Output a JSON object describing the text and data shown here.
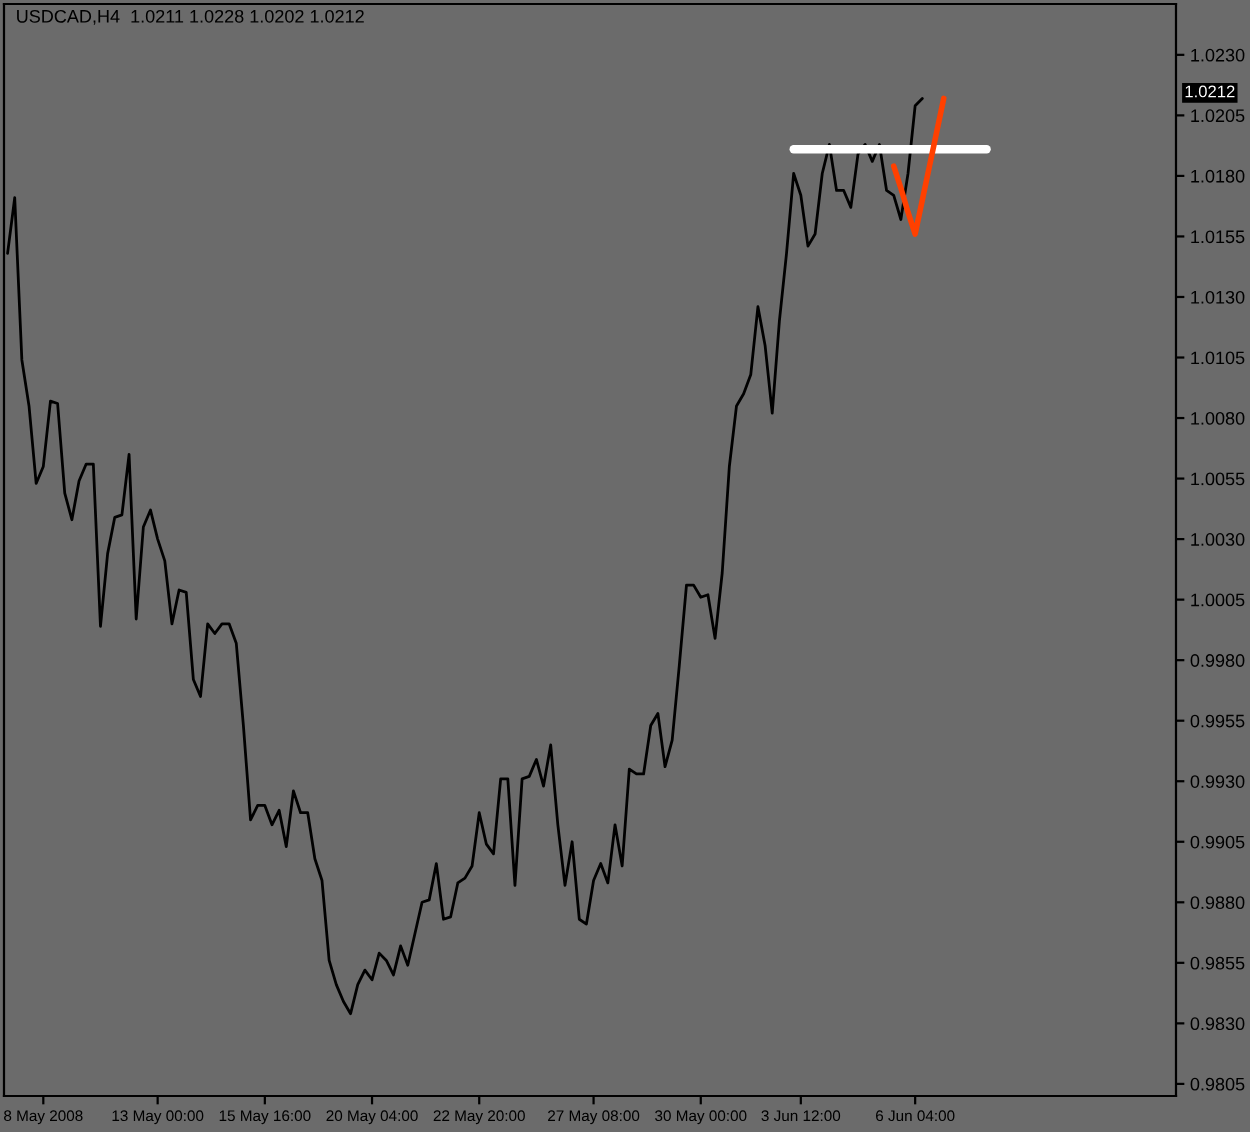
{
  "chart_data": {
    "type": "line",
    "title": "USDCAD,H4  1.0211 1.0228 1.0202 1.0212",
    "annotations": [
      "1.0212"
    ],
    "ylim": [
      0.98,
      1.0251
    ],
    "categories": [
      null,
      null,
      null,
      null,
      null,
      "8 May 2008",
      null,
      null,
      null,
      null,
      null,
      null,
      null,
      null,
      null,
      null,
      null,
      null,
      null,
      null,
      null,
      "13 May 00:00",
      null,
      null,
      null,
      null,
      null,
      null,
      null,
      null,
      null,
      null,
      null,
      null,
      null,
      null,
      "15 May 16:00",
      null,
      null,
      null,
      null,
      null,
      null,
      null,
      null,
      null,
      null,
      null,
      null,
      null,
      null,
      "20 May 04:00",
      null,
      null,
      null,
      null,
      null,
      null,
      null,
      null,
      null,
      null,
      null,
      null,
      null,
      null,
      "22 May 20:00",
      null,
      null,
      null,
      null,
      null,
      null,
      null,
      null,
      null,
      null,
      null,
      null,
      null,
      null,
      null,
      "27 May 08:00",
      null,
      null,
      null,
      null,
      null,
      null,
      null,
      null,
      null,
      null,
      null,
      null,
      null,
      null,
      "30 May 00:00",
      null,
      null,
      null,
      null,
      null,
      null,
      null,
      null,
      null,
      null,
      null,
      null,
      null,
      "3 Jun 12:00",
      null,
      null,
      null,
      null,
      null,
      null,
      null,
      null,
      null,
      null,
      null,
      null,
      null,
      null,
      null,
      "6 Jun 04:00",
      null,
      null,
      null,
      null,
      null,
      null,
      null,
      null,
      null,
      null,
      null,
      null,
      null,
      null,
      null,
      null,
      null,
      null,
      null,
      null,
      null,
      null,
      null,
      null,
      null,
      null,
      null,
      null,
      null,
      null,
      null,
      null,
      null,
      null,
      null,
      null
    ],
    "yticks": [
      {
        "value": 0.9805,
        "label": "0.9805"
      },
      {
        "value": 0.983,
        "label": "0.9830"
      },
      {
        "value": 0.9855,
        "label": "0.9855"
      },
      {
        "value": 0.988,
        "label": "0.9880"
      },
      {
        "value": 0.9905,
        "label": "0.9905"
      },
      {
        "value": 0.993,
        "label": "0.9930"
      },
      {
        "value": 0.9955,
        "label": "0.9955"
      },
      {
        "value": 0.998,
        "label": "0.9980"
      },
      {
        "value": 1.0005,
        "label": "1.0005"
      },
      {
        "value": 1.003,
        "label": "1.0030"
      },
      {
        "value": 1.0055,
        "label": "1.0055"
      },
      {
        "value": 1.008,
        "label": "1.0080"
      },
      {
        "value": 1.0105,
        "label": "1.0105"
      },
      {
        "value": 1.013,
        "label": "1.0130"
      },
      {
        "value": 1.0155,
        "label": "1.0155"
      },
      {
        "value": 1.018,
        "label": "1.0180"
      },
      {
        "value": 1.0205,
        "label": "1.0205"
      },
      {
        "value": 1.023,
        "label": "1.0230"
      }
    ],
    "grid": false,
    "series": [
      {
        "color": "#000000",
        "values": [
          1.0148,
          1.0171,
          1.0104,
          1.0085,
          1.0053,
          1.006,
          1.0087,
          1.0086,
          1.0049,
          1.0038,
          1.0054,
          1.0061,
          1.0061,
          0.9994,
          1.0024,
          1.0039,
          1.004,
          1.0065,
          0.9997,
          1.0035,
          1.0042,
          1.003,
          1.0021,
          0.9995,
          1.0009,
          1.0008,
          0.9972,
          0.9965,
          0.9995,
          0.9991,
          0.9995,
          0.9995,
          0.9987,
          0.9953,
          0.9914,
          0.992,
          0.992,
          0.9912,
          0.9918,
          0.9903,
          0.9926,
          0.9917,
          0.9917,
          0.9898,
          0.9889,
          0.9856,
          0.9846,
          0.9839,
          0.9834,
          0.9846,
          0.9852,
          0.9848,
          0.9859,
          0.9856,
          0.985,
          0.9862,
          0.9854,
          0.9867,
          0.988,
          0.9881,
          0.9896,
          0.9873,
          0.9874,
          0.9888,
          0.989,
          0.9895,
          0.9917,
          0.9904,
          0.99,
          0.9931,
          0.9931,
          0.9887,
          0.9931,
          0.9932,
          0.9939,
          0.9928,
          0.9945,
          0.9912,
          0.9887,
          0.9905,
          0.9873,
          0.9871,
          0.9889,
          0.9896,
          0.9888,
          0.9912,
          0.9895,
          0.9935,
          0.9933,
          0.9933,
          0.9953,
          0.9958,
          0.9936,
          0.9947,
          0.9978,
          1.0011,
          1.0011,
          1.0006,
          1.0007,
          0.9989,
          1.0016,
          1.006,
          1.0085,
          1.009,
          1.0098,
          1.0126,
          1.011,
          1.0082,
          1.012,
          1.0148,
          1.0181,
          1.0172,
          1.0151,
          1.0156,
          1.0181,
          1.0193,
          1.0174,
          1.0174,
          1.0167,
          1.0189,
          1.0193,
          1.0186,
          1.0193,
          1.0174,
          1.0172,
          1.0162,
          1.0181,
          1.0209,
          1.0212,
          null,
          null,
          null,
          null,
          null,
          null,
          null,
          null,
          null,
          null,
          null,
          null,
          null,
          null,
          null,
          null,
          null,
          null,
          null,
          null,
          null,
          null,
          null,
          null,
          null,
          null,
          null,
          null,
          null,
          null,
          null,
          null,
          null,
          null,
          null
        ]
      },
      {
        "color": "#ffffff",
        "values": [
          null,
          null,
          null,
          null,
          null,
          null,
          null,
          null,
          null,
          null,
          null,
          null,
          null,
          null,
          null,
          null,
          null,
          null,
          null,
          null,
          null,
          null,
          null,
          null,
          null,
          null,
          null,
          null,
          null,
          null,
          null,
          null,
          null,
          null,
          null,
          null,
          null,
          null,
          null,
          null,
          null,
          null,
          null,
          null,
          null,
          null,
          null,
          null,
          null,
          null,
          null,
          null,
          null,
          null,
          null,
          null,
          null,
          null,
          null,
          null,
          null,
          null,
          null,
          null,
          null,
          null,
          null,
          null,
          null,
          null,
          null,
          null,
          null,
          null,
          null,
          null,
          null,
          null,
          null,
          null,
          null,
          null,
          null,
          null,
          null,
          null,
          null,
          null,
          null,
          null,
          null,
          null,
          null,
          null,
          null,
          null,
          null,
          null,
          null,
          null,
          null,
          null,
          null,
          null,
          null,
          null,
          null,
          null,
          null,
          null,
          1.0191,
          1.0191,
          1.0191,
          1.0191,
          1.0191,
          1.0191,
          1.0191,
          1.0191,
          1.0191,
          1.0191,
          1.0191,
          1.0191,
          1.0191,
          1.0191,
          1.0191,
          1.0191,
          1.0191,
          1.0191,
          1.0191,
          1.0191,
          1.0191,
          1.0191,
          1.0191,
          1.0191,
          1.0191,
          1.0191,
          1.0191,
          1.0191,
          null,
          null,
          null,
          null,
          null,
          null,
          null,
          null,
          null,
          null,
          null,
          null,
          null,
          null,
          null,
          null,
          null,
          null,
          null,
          null,
          null,
          null,
          null,
          null,
          null,
          null
        ]
      },
      {
        "color": "#ff4000",
        "values": [
          null,
          null,
          null,
          null,
          null,
          null,
          null,
          null,
          null,
          null,
          null,
          null,
          null,
          null,
          null,
          null,
          null,
          null,
          null,
          null,
          null,
          null,
          null,
          null,
          null,
          null,
          null,
          null,
          null,
          null,
          null,
          null,
          null,
          null,
          null,
          null,
          null,
          null,
          null,
          null,
          null,
          null,
          null,
          null,
          null,
          null,
          null,
          null,
          null,
          null,
          null,
          null,
          null,
          null,
          null,
          null,
          null,
          null,
          null,
          null,
          null,
          null,
          null,
          null,
          null,
          null,
          null,
          null,
          null,
          null,
          null,
          null,
          null,
          null,
          null,
          null,
          null,
          null,
          null,
          null,
          null,
          null,
          null,
          null,
          null,
          null,
          null,
          null,
          null,
          null,
          null,
          null,
          null,
          null,
          null,
          null,
          null,
          null,
          null,
          null,
          null,
          null,
          null,
          null,
          null,
          null,
          null,
          null,
          null,
          null,
          null,
          null,
          null,
          null,
          null,
          null,
          null,
          null,
          null,
          null,
          null,
          null,
          null,
          null,
          1.0184,
          1.0175,
          1.0165,
          1.0156,
          1.017,
          1.0184,
          1.0198,
          1.0212,
          null,
          null,
          null,
          null,
          null,
          null,
          null,
          null,
          null,
          null,
          null,
          null,
          null,
          null,
          null,
          null,
          null,
          null,
          null,
          null,
          null,
          null,
          null,
          null,
          null,
          null,
          null,
          null,
          null,
          null,
          null,
          null
        ]
      }
    ]
  }
}
